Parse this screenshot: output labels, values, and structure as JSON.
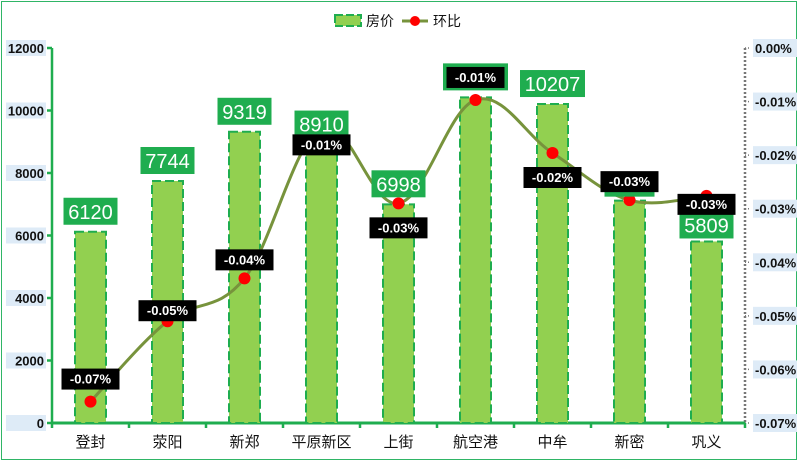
{
  "chart_data": {
    "type": "bar",
    "combo": "bar + line (secondary axis)",
    "title": "",
    "categories": [
      "登封",
      "荥阳",
      "新郑",
      "平原新区",
      "上街",
      "航空港",
      "中牟",
      "新密",
      "巩义"
    ],
    "series": [
      {
        "name": "房价",
        "type": "bar",
        "axis": "left",
        "values": [
          6120,
          7744,
          9319,
          8910,
          6998,
          10420,
          10207,
          7115,
          5809
        ],
        "labels": [
          "6120",
          "7744",
          "9319",
          "8910",
          "6998",
          "10420",
          "10207",
          "",
          "5809"
        ],
        "color": "#92d050",
        "border_color": "#1fad4f"
      },
      {
        "name": "环比",
        "type": "line",
        "axis": "right",
        "values": [
          -0.066,
          -0.051,
          -0.043,
          -0.015,
          -0.029,
          -0.0097,
          -0.0196,
          -0.0284,
          -0.0276
        ],
        "labels": [
          "-0.07%",
          "-0.05%",
          "-0.04%",
          "-0.01%",
          "-0.03%",
          "-0.01%",
          "-0.02%",
          "-0.03%",
          "-0.03%"
        ],
        "line_color": "#77933c",
        "marker_color": "#ff0000"
      }
    ],
    "left_axis": {
      "ylim": [
        0,
        12000
      ],
      "ticks": [
        "0",
        "2000",
        "4000",
        "6000",
        "8000",
        "10000",
        "12000"
      ]
    },
    "right_axis": {
      "ylim": [
        -0.07,
        0.0
      ],
      "ticks": [
        "0.00%",
        "-0.01%",
        "-0.02%",
        "-0.03%",
        "-0.04%",
        "-0.05%",
        "-0.06%",
        "-0.07%"
      ]
    },
    "legend": {
      "position": "top",
      "entries": [
        "房价",
        "环比"
      ]
    },
    "xlabel": "",
    "ylabel": "",
    "grid": false
  },
  "legend": {
    "bar_label": "房价",
    "line_label": "环比"
  }
}
